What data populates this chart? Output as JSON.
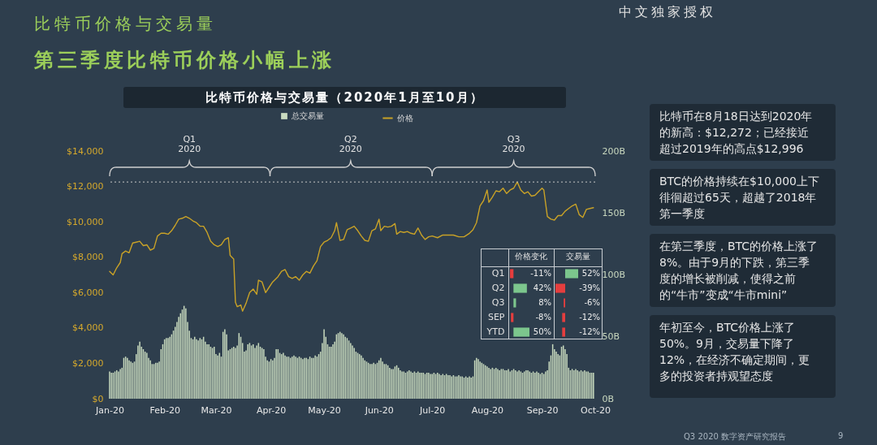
{
  "chart_data": [
    {
      "type": "bar",
      "title": "比特币价格与交易量（2020年1月至10月）",
      "annotations": [
        "比特币价格与交易量",
        "第三季度比特币价格小幅上涨",
        "中文独家授权",
        "Q3 2020 数字资产研究报告",
        "9"
      ],
      "series": [
        {
          "name": "总交易量",
          "type": "bar",
          "axis": "y2",
          "color": "#c9dbbf",
          "x": [
            "2020-01-01",
            "2020-01-02",
            "2020-01-03",
            "2020-01-04",
            "2020-01-05",
            "2020-01-06",
            "2020-01-07",
            "2020-01-08",
            "2020-01-09",
            "2020-01-10",
            "2020-01-11",
            "2020-01-12",
            "2020-01-13",
            "2020-01-14",
            "2020-01-15",
            "2020-01-16",
            "2020-01-17",
            "2020-01-18",
            "2020-01-19",
            "2020-01-20",
            "2020-01-21",
            "2020-01-22",
            "2020-01-23",
            "2020-01-24",
            "2020-01-25",
            "2020-01-26",
            "2020-01-27",
            "2020-01-28",
            "2020-01-29",
            "2020-01-30",
            "2020-01-31",
            "2020-02-01",
            "2020-02-02",
            "2020-02-03",
            "2020-02-04",
            "2020-02-05",
            "2020-02-06",
            "2020-02-07",
            "2020-02-08",
            "2020-02-09",
            "2020-02-10",
            "2020-02-11",
            "2020-02-12",
            "2020-02-13",
            "2020-02-14",
            "2020-02-15",
            "2020-02-16",
            "2020-02-17",
            "2020-02-18",
            "2020-02-19",
            "2020-02-20",
            "2020-02-21",
            "2020-02-22",
            "2020-02-23",
            "2020-02-24",
            "2020-02-25",
            "2020-02-26",
            "2020-02-27",
            "2020-02-28",
            "2020-02-29",
            "2020-03-01",
            "2020-03-02",
            "2020-03-03",
            "2020-03-04",
            "2020-03-05",
            "2020-03-06",
            "2020-03-07",
            "2020-03-08",
            "2020-03-09",
            "2020-03-10",
            "2020-03-11",
            "2020-03-12",
            "2020-03-13",
            "2020-03-14",
            "2020-03-15",
            "2020-03-16",
            "2020-03-17",
            "2020-03-18",
            "2020-03-19",
            "2020-03-20",
            "2020-03-21",
            "2020-03-22",
            "2020-03-23",
            "2020-03-24",
            "2020-03-25",
            "2020-03-26",
            "2020-03-27",
            "2020-03-28",
            "2020-03-29",
            "2020-03-30",
            "2020-03-31",
            "2020-04-01",
            "2020-04-02",
            "2020-04-03",
            "2020-04-04",
            "2020-04-05",
            "2020-04-06",
            "2020-04-07",
            "2020-04-08",
            "2020-04-09",
            "2020-04-10",
            "2020-04-11",
            "2020-04-12",
            "2020-04-13",
            "2020-04-14",
            "2020-04-15",
            "2020-04-16",
            "2020-04-17",
            "2020-04-18",
            "2020-04-19",
            "2020-04-20",
            "2020-04-21",
            "2020-04-22",
            "2020-04-23",
            "2020-04-24",
            "2020-04-25",
            "2020-04-26",
            "2020-04-27",
            "2020-04-28",
            "2020-04-29",
            "2020-04-30",
            "2020-05-01",
            "2020-05-02",
            "2020-05-03",
            "2020-05-04",
            "2020-05-05",
            "2020-05-06",
            "2020-05-07",
            "2020-05-08",
            "2020-05-09",
            "2020-05-10",
            "2020-05-11",
            "2020-05-12",
            "2020-05-13",
            "2020-05-14",
            "2020-05-15",
            "2020-05-16",
            "2020-05-17",
            "2020-05-18",
            "2020-05-19",
            "2020-05-20",
            "2020-05-21",
            "2020-05-22",
            "2020-05-23",
            "2020-05-24",
            "2020-05-25",
            "2020-05-26",
            "2020-05-27",
            "2020-05-28",
            "2020-05-29",
            "2020-05-30",
            "2020-05-31",
            "2020-06-01",
            "2020-06-02",
            "2020-06-03",
            "2020-06-04",
            "2020-06-05",
            "2020-06-06",
            "2020-06-07",
            "2020-06-08",
            "2020-06-09",
            "2020-06-10",
            "2020-06-11",
            "2020-06-12",
            "2020-06-13",
            "2020-06-14",
            "2020-06-15",
            "2020-06-16",
            "2020-06-17",
            "2020-06-18",
            "2020-06-19",
            "2020-06-20",
            "2020-06-21",
            "2020-06-22",
            "2020-06-23",
            "2020-06-24",
            "2020-06-25",
            "2020-06-26",
            "2020-06-27",
            "2020-06-28",
            "2020-06-29",
            "2020-06-30",
            "2020-07-01",
            "2020-07-02",
            "2020-07-03",
            "2020-07-04",
            "2020-07-05",
            "2020-07-06",
            "2020-07-07",
            "2020-07-08",
            "2020-07-09",
            "2020-07-10",
            "2020-07-11",
            "2020-07-12",
            "2020-07-13",
            "2020-07-14",
            "2020-07-15",
            "2020-07-16",
            "2020-07-17",
            "2020-07-18",
            "2020-07-19",
            "2020-07-20",
            "2020-07-21",
            "2020-07-22",
            "2020-07-23",
            "2020-07-24",
            "2020-07-25",
            "2020-07-26",
            "2020-07-27",
            "2020-07-28",
            "2020-07-29",
            "2020-07-30",
            "2020-07-31",
            "2020-08-01",
            "2020-08-02",
            "2020-08-03",
            "2020-08-04",
            "2020-08-05",
            "2020-08-06",
            "2020-08-07",
            "2020-08-08",
            "2020-08-09",
            "2020-08-10",
            "2020-08-11",
            "2020-08-12",
            "2020-08-13",
            "2020-08-14",
            "2020-08-15",
            "2020-08-16",
            "2020-08-17",
            "2020-08-18",
            "2020-08-19",
            "2020-08-20",
            "2020-08-21",
            "2020-08-22",
            "2020-08-23",
            "2020-08-24",
            "2020-08-25",
            "2020-08-26",
            "2020-08-27",
            "2020-08-28",
            "2020-08-29",
            "2020-08-30",
            "2020-08-31",
            "2020-09-01",
            "2020-09-02",
            "2020-09-03",
            "2020-09-04",
            "2020-09-05",
            "2020-09-06",
            "2020-09-07",
            "2020-09-08",
            "2020-09-09",
            "2020-09-10",
            "2020-09-11",
            "2020-09-12",
            "2020-09-13",
            "2020-09-14",
            "2020-09-15",
            "2020-09-16",
            "2020-09-17",
            "2020-09-18",
            "2020-09-19",
            "2020-09-20",
            "2020-09-21",
            "2020-09-22",
            "2020-09-23",
            "2020-09-24",
            "2020-09-25",
            "2020-09-26",
            "2020-09-27",
            "2020-09-28",
            "2020-09-29",
            "2020-09-30"
          ],
          "values": [
            22,
            21,
            21,
            22,
            23,
            22,
            24,
            25,
            33,
            34,
            33,
            31,
            30,
            29,
            30,
            36,
            43,
            46,
            42,
            40,
            38,
            37,
            33,
            31,
            28,
            28,
            29,
            29,
            30,
            40,
            44,
            48,
            49,
            49,
            50,
            52,
            55,
            58,
            62,
            66,
            69,
            72,
            75,
            73,
            62,
            55,
            49,
            48,
            50,
            48,
            47,
            49,
            48,
            50,
            46,
            44,
            44,
            42,
            41,
            42,
            36,
            35,
            37,
            34,
            54,
            56,
            52,
            39,
            40,
            41,
            42,
            41,
            43,
            53,
            50,
            45,
            38,
            39,
            44,
            45,
            43,
            44,
            41,
            43,
            45,
            42,
            41,
            40,
            34,
            31,
            30,
            32,
            31,
            33,
            40,
            40,
            37,
            36,
            37,
            35,
            34,
            34,
            33,
            34,
            35,
            34,
            33,
            34,
            33,
            32,
            33,
            33,
            32,
            34,
            33,
            33,
            35,
            34,
            36,
            38,
            45,
            56,
            50,
            44,
            42,
            42,
            44,
            46,
            52,
            53,
            54,
            53,
            52,
            50,
            49,
            47,
            45,
            43,
            41,
            38,
            37,
            36,
            35,
            33,
            31,
            30,
            29,
            28,
            28,
            29,
            28,
            29,
            31,
            33,
            30,
            28,
            28,
            27,
            25,
            24,
            24,
            26,
            27,
            25,
            23,
            22,
            22,
            21,
            22,
            23,
            22,
            21,
            22,
            21,
            22,
            21,
            21,
            21,
            20,
            21,
            21,
            20,
            20,
            21,
            20,
            21,
            20,
            19,
            20,
            19,
            20,
            19,
            19,
            18,
            19,
            18,
            18,
            19,
            18,
            18,
            17,
            18,
            17,
            18,
            17,
            18,
            31,
            33,
            32,
            30,
            29,
            28,
            27,
            26,
            25,
            24,
            25,
            24,
            25,
            24,
            23,
            24,
            24,
            23,
            23,
            24,
            22,
            23,
            24,
            23,
            22,
            23,
            22,
            21,
            22,
            23,
            23,
            22,
            21,
            22,
            21,
            22,
            21,
            20,
            21,
            20,
            22,
            23,
            30,
            35,
            44,
            40,
            38,
            36,
            35,
            42,
            43,
            40,
            36,
            25,
            23,
            24,
            23,
            24,
            23,
            22,
            23,
            22,
            23,
            22,
            22,
            21,
            21,
            21
          ]
        },
        {
          "name": "价格",
          "type": "line",
          "color": "#c9a227",
          "x": [
            "2020-01-01",
            "2020-01-03",
            "2020-01-05",
            "2020-01-07",
            "2020-01-08",
            "2020-01-10",
            "2020-01-12",
            "2020-01-14",
            "2020-01-16",
            "2020-01-18",
            "2020-01-20",
            "2020-01-22",
            "2020-01-24",
            "2020-01-26",
            "2020-01-28",
            "2020-01-30",
            "2020-02-01",
            "2020-02-03",
            "2020-02-05",
            "2020-02-07",
            "2020-02-09",
            "2020-02-11",
            "2020-02-13",
            "2020-02-15",
            "2020-02-17",
            "2020-02-19",
            "2020-02-21",
            "2020-02-23",
            "2020-02-25",
            "2020-02-27",
            "2020-02-29",
            "2020-03-02",
            "2020-03-04",
            "2020-03-06",
            "2020-03-08",
            "2020-03-09",
            "2020-03-11",
            "2020-03-12",
            "2020-03-13",
            "2020-03-15",
            "2020-03-16",
            "2020-03-18",
            "2020-03-20",
            "2020-03-22",
            "2020-03-24",
            "2020-03-25",
            "2020-03-27",
            "2020-03-29",
            "2020-03-31",
            "2020-04-02",
            "2020-04-05",
            "2020-04-07",
            "2020-04-09",
            "2020-04-11",
            "2020-04-13",
            "2020-04-15",
            "2020-04-17",
            "2020-04-19",
            "2020-04-21",
            "2020-04-23",
            "2020-04-25",
            "2020-04-27",
            "2020-04-29",
            "2020-05-01",
            "2020-05-03",
            "2020-05-05",
            "2020-05-07",
            "2020-05-08",
            "2020-05-10",
            "2020-05-12",
            "2020-05-14",
            "2020-05-16",
            "2020-05-18",
            "2020-05-20",
            "2020-05-22",
            "2020-05-24",
            "2020-05-26",
            "2020-05-28",
            "2020-05-30",
            "2020-06-01",
            "2020-06-02",
            "2020-06-04",
            "2020-06-06",
            "2020-06-08",
            "2020-06-10",
            "2020-06-11",
            "2020-06-13",
            "2020-06-15",
            "2020-06-17",
            "2020-06-19",
            "2020-06-21",
            "2020-06-23",
            "2020-06-25",
            "2020-06-27",
            "2020-06-29",
            "2020-07-01",
            "2020-07-04",
            "2020-07-07",
            "2020-07-10",
            "2020-07-13",
            "2020-07-16",
            "2020-07-19",
            "2020-07-22",
            "2020-07-24",
            "2020-07-26",
            "2020-07-28",
            "2020-07-30",
            "2020-08-01",
            "2020-08-02",
            "2020-08-04",
            "2020-08-06",
            "2020-08-08",
            "2020-08-10",
            "2020-08-12",
            "2020-08-14",
            "2020-08-16",
            "2020-08-18",
            "2020-08-20",
            "2020-08-22",
            "2020-08-24",
            "2020-08-26",
            "2020-08-28",
            "2020-08-30",
            "2020-09-01",
            "2020-09-02",
            "2020-09-04",
            "2020-09-06",
            "2020-09-08",
            "2020-09-10",
            "2020-09-12",
            "2020-09-14",
            "2020-09-16",
            "2020-09-18",
            "2020-09-20",
            "2020-09-22",
            "2020-09-24",
            "2020-09-26",
            "2020-09-28",
            "2020-09-30"
          ],
          "values": [
            7200,
            7000,
            7400,
            7700,
            8200,
            8350,
            8250,
            8800,
            8850,
            8900,
            8650,
            8700,
            8400,
            8500,
            9200,
            9350,
            9350,
            9300,
            9500,
            9800,
            10150,
            10200,
            10300,
            10200,
            10050,
            9950,
            9750,
            9750,
            9400,
            8900,
            8700,
            8600,
            8700,
            9000,
            9100,
            8100,
            7900,
            5450,
            5200,
            5300,
            4950,
            5400,
            6000,
            6200,
            5900,
            6700,
            6600,
            6000,
            6300,
            6600,
            6900,
            7200,
            7300,
            6900,
            6800,
            6900,
            6700,
            7000,
            7200,
            7100,
            7500,
            7800,
            8600,
            8850,
            8950,
            9100,
            9500,
            9950,
            8950,
            9000,
            9550,
            9650,
            9750,
            9500,
            9200,
            8950,
            8900,
            9500,
            9600,
            10150,
            9500,
            9750,
            9700,
            9750,
            9900,
            9300,
            9450,
            9400,
            9450,
            9350,
            9300,
            9650,
            9250,
            9000,
            9150,
            9200,
            9100,
            9250,
            9250,
            9250,
            9150,
            9150,
            9350,
            9550,
            9950,
            10900,
            11200,
            11800,
            11100,
            11400,
            11750,
            11700,
            11900,
            11600,
            11800,
            11900,
            12250,
            11800,
            11600,
            11700,
            11450,
            11500,
            11700,
            11900,
            11800,
            10300,
            10150,
            10100,
            10350,
            10350,
            10600,
            10750,
            10900,
            11000,
            10400,
            10250,
            10700,
            10750,
            10800
          ]
        }
      ],
      "xlim": [
        "2020-01-01",
        "2020-10-01"
      ],
      "xticks": [
        {
          "value": "2020-01-01",
          "label": "Jan-20"
        },
        {
          "value": "2020-02-01",
          "label": "Feb-20"
        },
        {
          "value": "2020-03-01",
          "label": "Mar-20"
        },
        {
          "value": "2020-04-01",
          "label": "Apr-20"
        },
        {
          "value": "2020-05-01",
          "label": "May-20"
        },
        {
          "value": "2020-06-01",
          "label": "Jun-20"
        },
        {
          "value": "2020-07-01",
          "label": "Jul-20"
        },
        {
          "value": "2020-08-01",
          "label": "Aug-20"
        },
        {
          "value": "2020-09-01",
          "label": "Sep-20"
        },
        {
          "value": "2020-10-01",
          "label": "Oct-20"
        }
      ],
      "x2lim": [
        "2020-01-01",
        "2020-10-01"
      ],
      "x2ticks": [
        {
          "value": "2020-02-15",
          "label": "Q1\n2020"
        },
        {
          "value": "2020-05-16",
          "label": "Q2\n2020"
        },
        {
          "value": "2020-08-16",
          "label": "Q3\n2020"
        }
      ],
      "ylim": [
        0,
        14000
      ],
      "yticks": [
        {
          "value": 0,
          "label": "$0"
        },
        {
          "value": 2000,
          "label": "$2,000"
        },
        {
          "value": 4000,
          "label": "$4,000"
        },
        {
          "value": 6000,
          "label": "$6,000"
        },
        {
          "value": 8000,
          "label": "$8,000"
        },
        {
          "value": 10000,
          "label": "$10,000"
        },
        {
          "value": 12000,
          "label": "$12,000"
        },
        {
          "value": 14000,
          "label": "$14,000"
        }
      ],
      "y2lim": [
        0,
        200
      ],
      "y2ticks": [
        {
          "value": 0,
          "label": "0B"
        },
        {
          "value": 50,
          "label": "50B"
        },
        {
          "value": 100,
          "label": "100B"
        },
        {
          "value": 150,
          "label": "150B"
        },
        {
          "value": 200,
          "label": "200B"
        }
      ],
      "legend": "top",
      "ref_lines": [
        {
          "axis": "y",
          "value": 12250,
          "color": "#c8c8c8",
          "line_style": "dotted"
        }
      ]
    },
    {
      "type": "bar",
      "orientation": "horizontal",
      "title": "价格变化",
      "categories": [
        "Q1",
        "Q2",
        "Q3",
        "SEP",
        "YTD"
      ],
      "values": [
        -11,
        42,
        8,
        -8,
        50
      ],
      "colors": [
        "#e53e3e",
        "#7cc68d",
        "#7cc68d",
        "#e53e3e",
        "#7cc68d"
      ],
      "value_labels": [
        "-11%",
        "42%",
        "8%",
        "-8%",
        "50%"
      ],
      "tick_labels": "y"
    },
    {
      "type": "bar",
      "orientation": "horizontal",
      "title": "交易量",
      "categories": [
        null,
        null,
        null,
        null,
        null
      ],
      "values": [
        52,
        -39,
        -6,
        -12,
        -12
      ],
      "colors": [
        "#7cc68d",
        "#e53e3e",
        "#e53e3e",
        "#e53e3e",
        "#e53e3e"
      ],
      "value_labels": [
        "52%",
        "-39%",
        "-6%",
        "-12%",
        "-12%"
      ]
    },
    {
      "type": "other",
      "annotations": [
        "比特币在8月18日达到2020年的新高：$12,272；已经接近超过2019年的高点$12,996",
        "BTC的价格持续在$10,000上下徘徊超过65天，超越了2018年第一季度",
        "在第三季度，BTC的价格上涨了8%。由于9月的下跌，第三季度的增长被削减，使得之前的“牛市”变成“牛市mini”",
        "年初至今，BTC价格上涨了50%。9月，交易量下降了12%，在经济不确定期间，更多的投资者持观望态度"
      ]
    }
  ]
}
